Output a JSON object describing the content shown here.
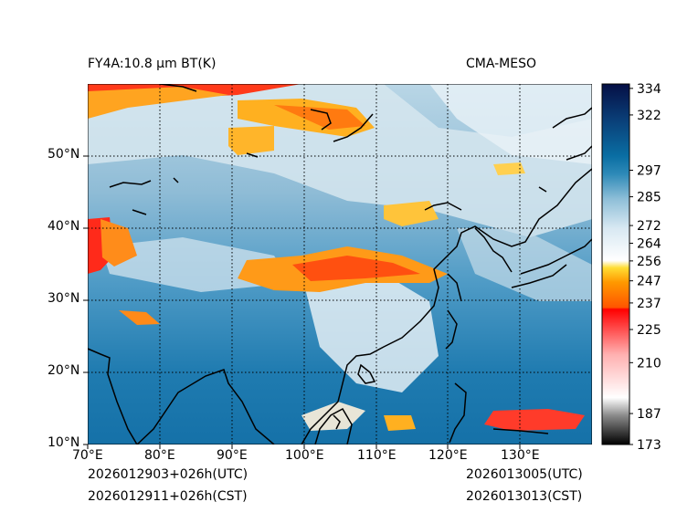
{
  "figure": {
    "title_left": "FY4A:10.8 μm BT(K)",
    "title_right": "CMA-MESO",
    "init_utc": "2026012903+026h(UTC)",
    "init_cst": "2026012911+026h(CST)",
    "valid_utc": "2026013005(UTC)",
    "valid_cst": "2026013013(CST)"
  },
  "map": {
    "lon_range": [
      70,
      140
    ],
    "lat_range": [
      10,
      60
    ],
    "lon_ticks": [
      "70°E",
      "80°E",
      "90°E",
      "100°E",
      "110°E",
      "120°E",
      "130°E"
    ],
    "lat_ticks": [
      "10°N",
      "20°N",
      "30°N",
      "40°N",
      "50°N"
    ],
    "gridlines": "dotted",
    "coastlines": "black"
  },
  "colorbar": {
    "orientation": "vertical",
    "range": [
      173,
      336
    ],
    "ticks": [
      "173",
      "187",
      "210",
      "225",
      "237",
      "247",
      "256",
      "264",
      "272",
      "285",
      "297",
      "322",
      "334"
    ],
    "tick_values": [
      173,
      187,
      210,
      225,
      237,
      247,
      256,
      264,
      272,
      285,
      297,
      322,
      334
    ]
  }
}
